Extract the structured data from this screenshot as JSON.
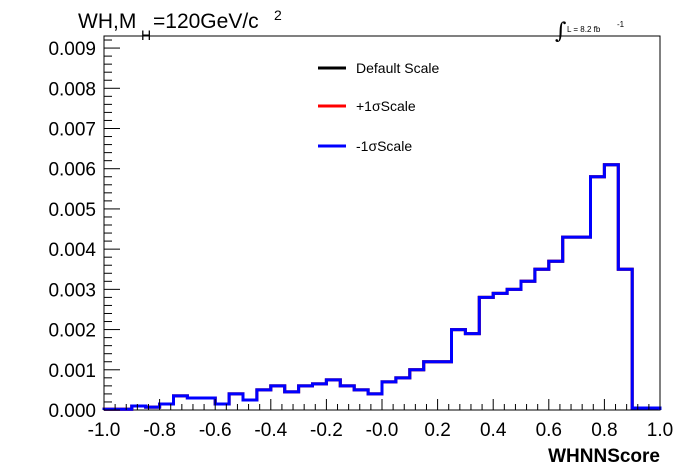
{
  "chart_data": {
    "type": "line",
    "title": {
      "main": "WH,M",
      "sub": "H",
      "rest": "=120GeV/c",
      "sup": "2"
    },
    "luminosity": {
      "integral": "∫",
      "text": "L = 8.2 fb",
      "sup": "-1"
    },
    "xlabel": "WHNNScore",
    "ylabel": "",
    "xlim": [
      -1.0,
      1.0
    ],
    "ylim": [
      0,
      0.0093
    ],
    "x_ticks": [
      "-1.0",
      "-0.8",
      "-0.6",
      "-0.4",
      "-0.2",
      "-0.0",
      "0.2",
      "0.4",
      "0.6",
      "0.8",
      "1.0"
    ],
    "y_ticks": [
      "0.000",
      "0.001",
      "0.002",
      "0.003",
      "0.004",
      "0.005",
      "0.006",
      "0.007",
      "0.008",
      "0.009"
    ],
    "legend_placement": "top-center",
    "bin_edges": [
      -1.0,
      -0.95,
      -0.9,
      -0.85,
      -0.8,
      -0.75,
      -0.7,
      -0.65,
      -0.6,
      -0.55,
      -0.5,
      -0.45,
      -0.4,
      -0.35,
      -0.3,
      -0.25,
      -0.2,
      -0.15,
      -0.1,
      -0.05,
      0.0,
      0.05,
      0.1,
      0.15,
      0.2,
      0.25,
      0.3,
      0.35,
      0.4,
      0.45,
      0.5,
      0.55,
      0.6,
      0.65,
      0.7,
      0.75,
      0.8,
      0.85,
      0.9,
      0.95,
      1.0
    ],
    "series": [
      {
        "name": "Default Scale",
        "color": "#000000",
        "values": [
          2e-05,
          2e-05,
          0.0001,
          7e-05,
          0.00015,
          0.00035,
          0.0003,
          0.0003,
          0.00015,
          0.0004,
          0.00025,
          0.0005,
          0.0006,
          0.00045,
          0.0006,
          0.00065,
          0.00075,
          0.0006,
          0.0005,
          0.0004,
          0.0007,
          0.0008,
          0.001,
          0.0012,
          0.0012,
          0.002,
          0.0019,
          0.0028,
          0.0029,
          0.003,
          0.0032,
          0.0035,
          0.0037,
          0.0043,
          0.0043,
          0.0058,
          0.0061,
          0.0035,
          5e-05,
          5e-05
        ]
      },
      {
        "name": "+1σScale",
        "color": "#ff0000",
        "values": [
          2e-05,
          2e-05,
          0.0001,
          7e-05,
          0.00015,
          0.00035,
          0.0003,
          0.0003,
          0.00015,
          0.0004,
          0.00025,
          0.0005,
          0.0006,
          0.00045,
          0.0006,
          0.00065,
          0.00075,
          0.0006,
          0.0005,
          0.0004,
          0.0007,
          0.0008,
          0.001,
          0.0012,
          0.0012,
          0.002,
          0.0019,
          0.0028,
          0.0029,
          0.003,
          0.0032,
          0.0035,
          0.0037,
          0.0043,
          0.0043,
          0.0058,
          0.0061,
          0.0035,
          5e-05,
          5e-05
        ]
      },
      {
        "name": "-1σScale",
        "color": "#0000ff",
        "values": [
          2e-05,
          2e-05,
          0.0001,
          7e-05,
          0.00015,
          0.00035,
          0.0003,
          0.0003,
          0.00015,
          0.0004,
          0.00025,
          0.0005,
          0.0006,
          0.00045,
          0.0006,
          0.00065,
          0.00075,
          0.0006,
          0.0005,
          0.0004,
          0.0007,
          0.0008,
          0.001,
          0.0012,
          0.0012,
          0.002,
          0.0019,
          0.0028,
          0.0029,
          0.003,
          0.0032,
          0.0035,
          0.0037,
          0.0043,
          0.0043,
          0.0058,
          0.0061,
          0.0035,
          5e-05,
          5e-05
        ]
      }
    ]
  }
}
